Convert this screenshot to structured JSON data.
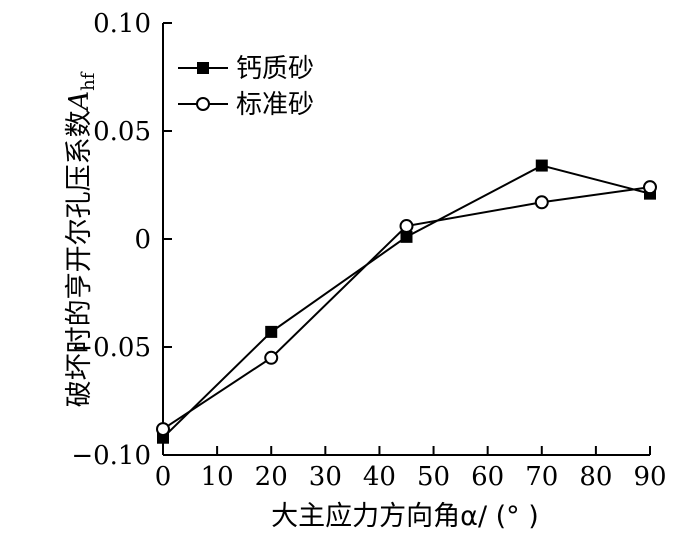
{
  "chart_data": {
    "type": "line",
    "xlabel": "大主应力方向角α/ (° )",
    "ylabel": "破坏时的亨开尔孔压系数",
    "ylabel_symbol": "A",
    "ylabel_subscript": "hf",
    "xlim": [
      0,
      90
    ],
    "ylim": [
      -0.1,
      0.1
    ],
    "x_ticks": [
      0,
      10,
      20,
      30,
      40,
      50,
      60,
      70,
      80,
      90
    ],
    "x_tick_labels": [
      "0",
      "10",
      "20",
      "30",
      "40",
      "50",
      "60",
      "70",
      "80",
      "90"
    ],
    "y_ticks": [
      -0.1,
      -0.05,
      0,
      0.05,
      0.1
    ],
    "y_tick_labels": [
      "−0.10",
      "−0.05",
      "0",
      "0.05",
      "0.10"
    ],
    "grid": false,
    "legend_position": "top-left",
    "series": [
      {
        "name": "钙质砂",
        "marker": "filled-square",
        "color": "#000000",
        "x": [
          0,
          20,
          45,
          70,
          90
        ],
        "y": [
          -0.092,
          -0.043,
          0.001,
          0.034,
          0.021
        ]
      },
      {
        "name": "标准砂",
        "marker": "open-circle",
        "color": "#000000",
        "x": [
          0,
          20,
          45,
          70,
          90
        ],
        "y": [
          -0.088,
          -0.055,
          0.006,
          0.017,
          0.024
        ]
      }
    ]
  }
}
